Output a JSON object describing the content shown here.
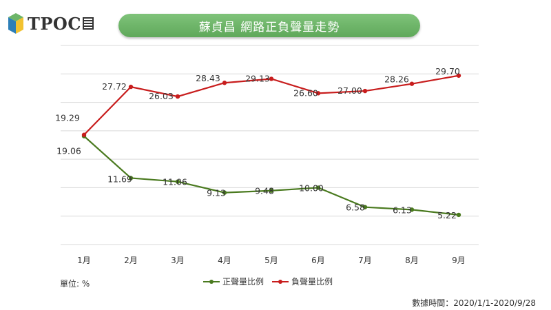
{
  "logo": {
    "text": "TPOC"
  },
  "title": "蘇貞昌 網路正負聲量走勢",
  "unit_label": "單位: %",
  "source_note": "數據時間：2020/1/1-2020/9/28",
  "colors": {
    "positive": "#4a7a1f",
    "negative": "#c81d1d",
    "title_bg": "#6db568"
  },
  "chart_data": {
    "type": "line",
    "title": "蘇貞昌 網路正負聲量走勢",
    "categories": [
      "1月",
      "2月",
      "3月",
      "4月",
      "5月",
      "6月",
      "7月",
      "8月",
      "9月"
    ],
    "series": [
      {
        "name": "正聲量比例",
        "color": "#4a7a1f",
        "values": [
          19.06,
          11.69,
          11.06,
          9.13,
          9.48,
          10.0,
          6.58,
          6.13,
          5.22
        ],
        "labels": [
          "19.06",
          "11.69",
          "11.06",
          "9.13",
          "9.48",
          "10.00",
          "6.58",
          "6.13",
          "5.22"
        ]
      },
      {
        "name": "負聲量比例",
        "color": "#c81d1d",
        "values": [
          19.29,
          27.72,
          26.03,
          28.43,
          29.13,
          26.6,
          27.0,
          28.26,
          29.7
        ],
        "labels": [
          "19.29",
          "27.72",
          "26.03",
          "28.43",
          "29.13",
          "26.60",
          "27.00",
          "28.26",
          "29.70"
        ]
      }
    ],
    "ylim": [
      0,
      35
    ],
    "grid": true,
    "legend": "bottom"
  }
}
